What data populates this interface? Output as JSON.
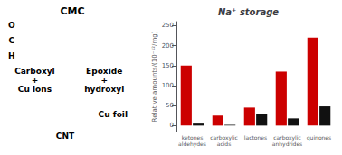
{
  "chart_data": {
    "type": "bar",
    "title": "Na⁺ storage",
    "ylabel": "Relative amounts/(10⁻¹²/mg)",
    "categories": [
      "ketones\naldehydes",
      "carboxylic\nacids",
      "lactones",
      "carboxylic\nanhydrides",
      "quinones"
    ],
    "series": [
      {
        "color": "#cc0000",
        "values": [
          150,
          25,
          45,
          135,
          220
        ]
      },
      {
        "color": "#111111",
        "values": [
          5,
          2,
          28,
          18,
          48
        ]
      }
    ],
    "ylim": [
      -15,
      260
    ],
    "yticks": [
      0,
      50,
      100,
      150,
      200,
      250
    ],
    "grid": false,
    "annotations": [
      "CMC",
      "O",
      "C",
      "H",
      "Carboxyl\n+\nCu ions",
      "Epoxide\n+\nhydroxyl",
      "CNT",
      "Cu foil"
    ]
  }
}
